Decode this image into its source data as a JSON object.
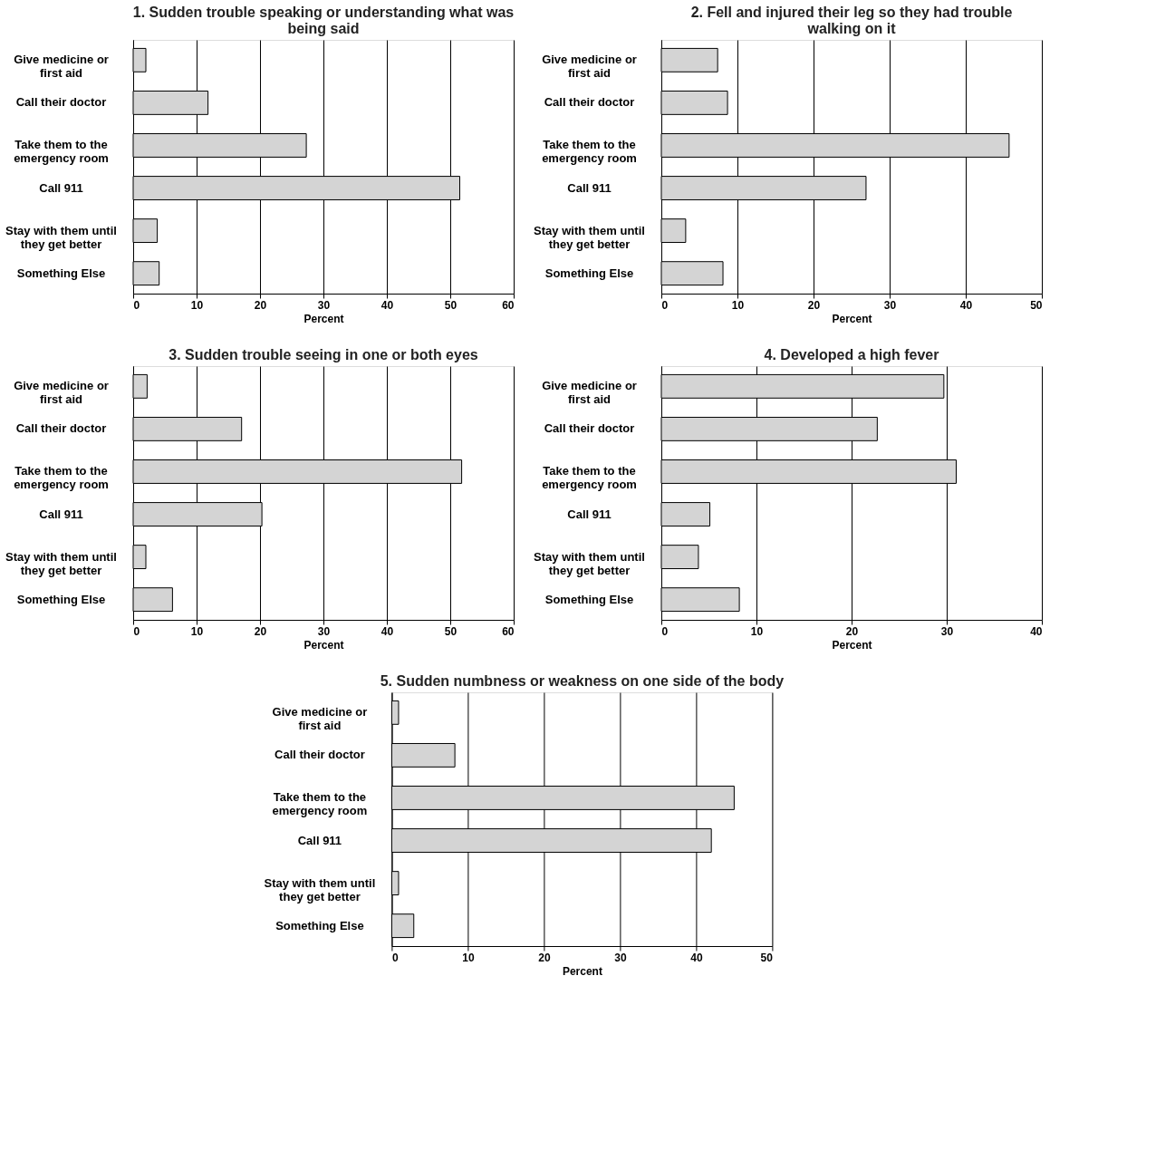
{
  "chart_data": [
    {
      "type": "bar",
      "orientation": "horizontal",
      "title": "1. Sudden trouble speaking or understanding what was being said",
      "xlabel": "Percent",
      "categories": [
        "Give medicine or first aid",
        "Call their doctor",
        "Take them to the emergency room",
        "Call 911",
        "Stay with them until they get better",
        "Something Else"
      ],
      "values": [
        2.0,
        11.8,
        27.3,
        51.5,
        3.8,
        4.1
      ],
      "color": "#d4d4d4",
      "xlim": [
        0,
        60
      ],
      "xticks": [
        0,
        10,
        20,
        30,
        40,
        50,
        60
      ],
      "grid": "x"
    },
    {
      "type": "bar",
      "orientation": "horizontal",
      "title": "2. Fell and injured their leg so they had trouble walking on it",
      "xlabel": "Percent",
      "categories": [
        "Give medicine or first aid",
        "Call their doctor",
        "Take them to the emergency room",
        "Call 911",
        "Stay with them until they get better",
        "Something Else"
      ],
      "values": [
        7.4,
        8.7,
        45.7,
        26.9,
        3.2,
        8.1
      ],
      "color": "#d4d4d4",
      "xlim": [
        0,
        50
      ],
      "xticks": [
        0,
        10,
        20,
        30,
        40,
        50
      ],
      "grid": "x"
    },
    {
      "type": "bar",
      "orientation": "horizontal",
      "title": "3. Sudden trouble seeing in one or both eyes",
      "xlabel": "Percent",
      "categories": [
        "Give medicine or first aid",
        "Call their doctor",
        "Take them to the emergency room",
        "Call 911",
        "Stay with them until they get better",
        "Something Else"
      ],
      "values": [
        2.2,
        17.1,
        51.8,
        20.3,
        2.0,
        6.2
      ],
      "color": "#d4d4d4",
      "xlim": [
        0,
        60
      ],
      "xticks": [
        0,
        10,
        20,
        30,
        40,
        50,
        60
      ],
      "grid": "x"
    },
    {
      "type": "bar",
      "orientation": "horizontal",
      "title": "4. Developed a high fever",
      "xlabel": "Percent",
      "categories": [
        "Give medicine or first aid",
        "Call their doctor",
        "Take them to the emergency room",
        "Call 911",
        "Stay with them until they get better",
        "Something Else"
      ],
      "values": [
        29.7,
        22.7,
        31.0,
        5.1,
        3.9,
        8.2
      ],
      "color": "#d4d4d4",
      "xlim": [
        0,
        40
      ],
      "xticks": [
        0,
        10,
        20,
        30,
        40
      ],
      "grid": "x"
    },
    {
      "type": "bar",
      "orientation": "horizontal",
      "title": "5. Sudden numbness or weakness on one side of the body",
      "xlabel": "Percent",
      "categories": [
        "Give medicine or first aid",
        "Call their doctor",
        "Take them to the emergency room",
        "Call 911",
        "Stay with them until they get better",
        "Something Else"
      ],
      "values": [
        0.9,
        8.3,
        45.0,
        42.0,
        0.9,
        2.9
      ],
      "color": "#d4d4d4",
      "xlim": [
        0,
        50
      ],
      "xticks": [
        0,
        10,
        20,
        30,
        40,
        50
      ],
      "grid": "x"
    }
  ]
}
